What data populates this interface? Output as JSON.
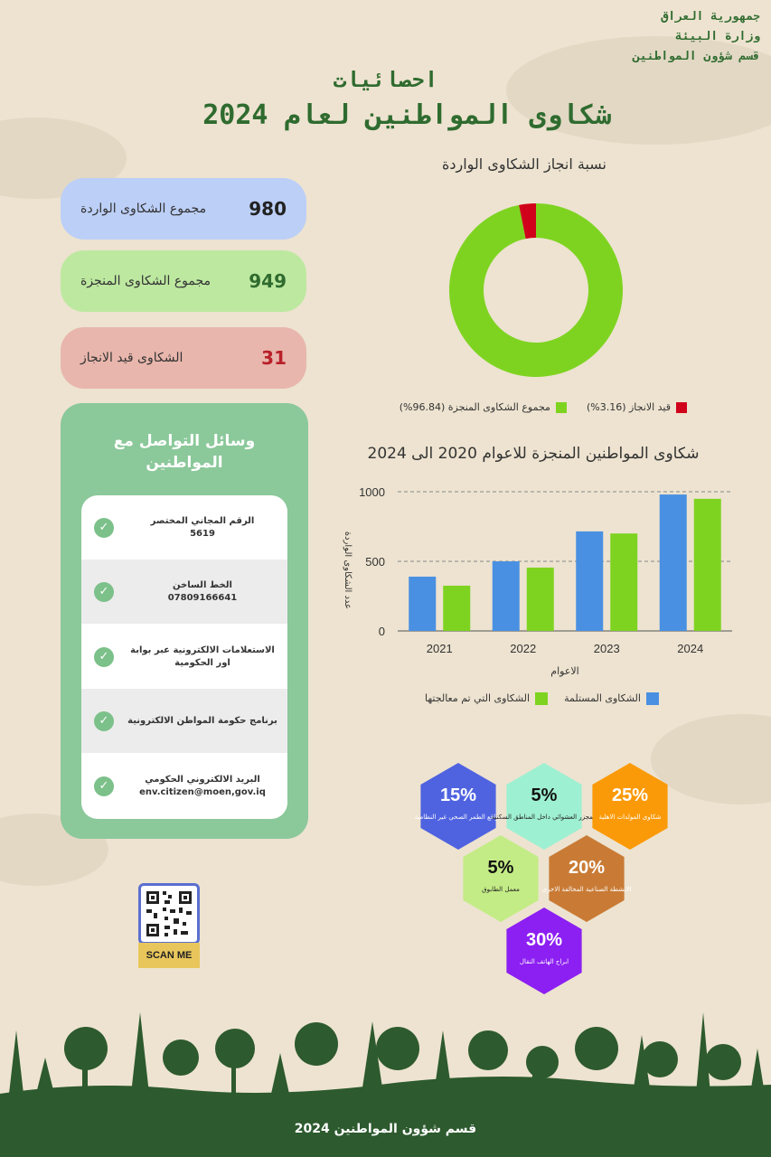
{
  "header": {
    "ministry_lines": [
      "جمهورية العراق",
      "وزارة البيئة",
      "قسم شؤون المواطنين"
    ],
    "title_line1": "احصائيات",
    "title_line2": "شكاوى المواطنين لعام 2024"
  },
  "stats": [
    {
      "value": "980",
      "label": "مجموع الشكاوى الواردة",
      "bg": "#bccff7",
      "num_color": "#222222"
    },
    {
      "value": "949",
      "label": "مجموع الشكاوى المنجزة",
      "bg": "#bde8a0",
      "num_color": "#2f6b2f"
    },
    {
      "value": "31",
      "label": "الشكاوى قيد الانجاز",
      "bg": "#e8b6ac",
      "num_color": "#b8202a"
    }
  ],
  "donut": {
    "title": "نسبة انجاز الشكاوى الواردة",
    "slices": [
      {
        "label": "مجموع الشكاوى المنجزة (96.84%)",
        "value": 96.84,
        "color": "#7ed321"
      },
      {
        "label": "قيد الانجاز (3.16%)",
        "value": 3.16,
        "color": "#d0021b"
      }
    ]
  },
  "chart_data": {
    "type": "bar",
    "title": "شكاوى المواطنين المنجزة للاعوام 2020 الى 2024",
    "xlabel": "الاعوام",
    "ylabel": "عدد الشكاوى الواردة",
    "categories": [
      "2021",
      "2022",
      "2023",
      "2024"
    ],
    "ylim": [
      0,
      1000
    ],
    "yticks": [
      0,
      500,
      1000
    ],
    "series": [
      {
        "name": "الشكاوى المستلمة",
        "color": "#4a90e2",
        "values": [
          390,
          500,
          715,
          980
        ]
      },
      {
        "name": "الشكاوى التي تم معالجتها",
        "color": "#7ed321",
        "values": [
          325,
          455,
          700,
          949
        ]
      }
    ],
    "legend": "bottom",
    "grid": true
  },
  "contact": {
    "title_line1": "وسائل التواصل مع",
    "title_line2": "المواطنين",
    "items": [
      {
        "title": "الرقم المجاني المختصر",
        "sub": "5619",
        "shaded": false
      },
      {
        "title": "الخط الساخن",
        "sub": "07809166641",
        "shaded": true
      },
      {
        "title": "الاستعلامات الالكترونية عبر بوابة اور الحكومية",
        "sub": "",
        "shaded": false
      },
      {
        "title": "برنامج حكومة المواطن الالكترونية",
        "sub": "",
        "shaded": true
      },
      {
        "title": "البريد الالكتروني الحكومي",
        "sub": "env.citizen@moen,gov.iq",
        "shaded": false
      }
    ]
  },
  "qr": {
    "label": "SCAN ME"
  },
  "hexagons": [
    {
      "percent": "15%",
      "label": "مواقع الطمر الصحي غير النظامية",
      "color": "#4f63e0"
    },
    {
      "percent": "5%",
      "label": "المجزر العشوائي داخل المناطق السكنية",
      "color": "#9ef0d2"
    },
    {
      "percent": "25%",
      "label": "شكاوى المولدات الاهلية",
      "color": "#fb9a08"
    },
    {
      "percent": "5%",
      "label": "معمل الطابوق",
      "color": "#c4ec86"
    },
    {
      "percent": "20%",
      "label": "الانشطة الصناعية المخالفة الاخرى",
      "color": "#c97b35"
    },
    {
      "percent": "30%",
      "label": "ابراج الهاتف النقال",
      "color": "#8c1ff2"
    }
  ],
  "footer": {
    "text": "قسم شؤون المواطنين 2024"
  }
}
